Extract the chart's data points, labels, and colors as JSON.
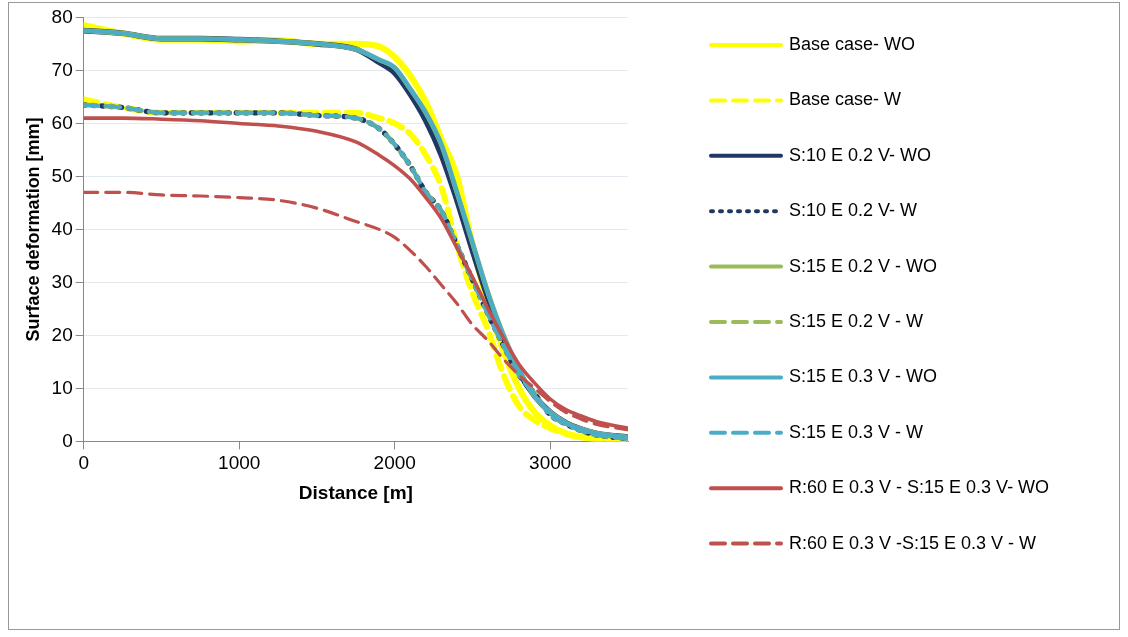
{
  "chart_data": {
    "type": "line",
    "xlabel": "Distance [m]",
    "ylabel": "Surface deformation [mm]",
    "x": [
      0,
      250,
      500,
      750,
      1000,
      1250,
      1500,
      1750,
      1900,
      2000,
      2100,
      2200,
      2300,
      2400,
      2500,
      2600,
      2700,
      2800,
      2900,
      3000,
      3100,
      3200,
      3300,
      3500
    ],
    "xlim": [
      0,
      3500
    ],
    "xticks": [
      0,
      1000,
      2000,
      3000
    ],
    "ylim": [
      0,
      80
    ],
    "yticks": [
      0,
      10,
      20,
      30,
      40,
      50,
      60,
      70,
      80
    ],
    "grid": "y",
    "legend": "right",
    "marker": "none",
    "series": [
      {
        "name": "Base case- WO",
        "color": "#ffff00",
        "line_style": "solid",
        "values": [
          78.5,
          77,
          75.8,
          75.8,
          75.5,
          75.7,
          75,
          75,
          74.5,
          72.5,
          69,
          64,
          57,
          50,
          37,
          26,
          17,
          10,
          5.5,
          3,
          1.5,
          0.8,
          0.5,
          0.2
        ]
      },
      {
        "name": "Base case- W",
        "color": "#ffff00",
        "line_style": "dashed",
        "values": [
          64.5,
          63,
          62,
          62,
          62,
          62,
          62,
          62,
          61,
          60,
          58,
          54,
          48,
          37,
          28,
          21,
          12.5,
          6.6,
          4,
          2.5,
          1.5,
          0.8,
          0.4,
          0
        ]
      },
      {
        "name": "S:10 E 0.2 V- WO",
        "color": "#1f3864",
        "line_style": "solid",
        "values": [
          77.5,
          77,
          76,
          76,
          75.8,
          75.5,
          75,
          74,
          71.5,
          69.5,
          65.5,
          60.5,
          54,
          45.5,
          36,
          27,
          19.5,
          13,
          8.5,
          5.5,
          3.5,
          2.3,
          1.5,
          0.8
        ]
      },
      {
        "name": "S:10 E 0.2 V- W",
        "color": "#1f3864",
        "line_style": "dotted",
        "values": [
          63.5,
          63,
          62,
          62,
          62,
          62,
          61.5,
          61,
          59,
          56,
          52,
          47,
          43.5,
          37,
          30.5,
          24,
          18,
          12.5,
          9,
          5,
          3.3,
          2,
          1.2,
          0.5
        ]
      },
      {
        "name": "S:15 E 0.2 V - WO",
        "color": "#9bbb59",
        "line_style": "solid",
        "values": [
          77.5,
          77,
          76,
          76,
          75.8,
          75.5,
          75,
          74,
          72,
          70.5,
          66.5,
          62,
          56,
          47,
          37.5,
          28,
          20,
          13.5,
          8.5,
          5.5,
          3.5,
          2.3,
          1.5,
          0.8
        ]
      },
      {
        "name": "S:15 E 0.2 V - W",
        "color": "#9bbb59",
        "line_style": "dashed",
        "values": [
          63.5,
          63,
          62,
          62,
          62,
          62,
          61.5,
          61,
          59,
          56,
          52,
          47,
          43.5,
          37,
          30.5,
          24,
          18,
          12.5,
          9,
          5,
          3.3,
          2,
          1.2,
          0.5
        ]
      },
      {
        "name": "S:15 E 0.3 V - WO",
        "color": "#4bacc6",
        "line_style": "solid",
        "values": [
          77.5,
          77,
          76,
          76,
          75.8,
          75.5,
          75,
          74,
          72,
          70.5,
          66.5,
          62,
          56,
          47,
          37.5,
          28,
          20,
          13.5,
          8.5,
          5.5,
          3.5,
          2.3,
          1.5,
          0.8
        ]
      },
      {
        "name": "S:15 E 0.3 V - W",
        "color": "#4bacc6",
        "line_style": "dashed",
        "values": [
          63.5,
          63,
          62,
          62,
          62,
          62,
          61.5,
          61,
          59,
          56,
          52,
          47,
          43.5,
          37,
          30.5,
          24,
          18,
          12.5,
          9,
          5,
          3.3,
          2,
          1.2,
          0.5
        ]
      },
      {
        "name": "R:60 E 0.3 V - S:15 E 0.3 V- WO",
        "color": "#c0504d",
        "line_style": "solid",
        "values": [
          61,
          61,
          60.8,
          60.5,
          60,
          59.5,
          58.5,
          56.5,
          54,
          52,
          49.5,
          46,
          42,
          36.5,
          31,
          25,
          19.5,
          14.5,
          11,
          8,
          6,
          4.8,
          3.7,
          2.5
        ]
      },
      {
        "name": "R:60 E 0.3 V -S:15 E 0.3 V - W",
        "color": "#c0504d",
        "line_style": "dashed",
        "values": [
          47,
          47,
          46.5,
          46.3,
          46,
          45.5,
          44,
          41.5,
          40,
          38.5,
          36,
          33,
          29.5,
          26,
          22,
          19,
          15.5,
          12.5,
          10,
          7.5,
          5.5,
          4.2,
          3.2,
          2.2
        ]
      }
    ]
  }
}
